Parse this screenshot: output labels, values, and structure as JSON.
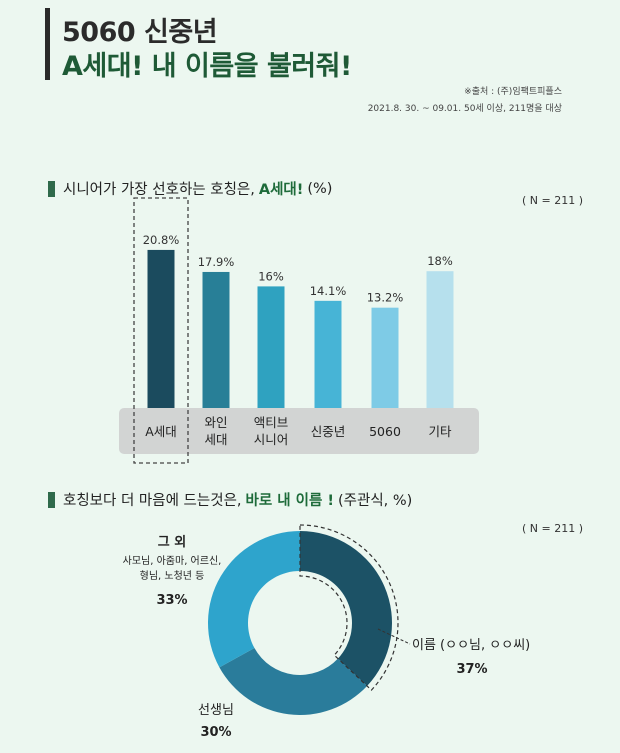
{
  "header": {
    "title_line1": "5060 신중년",
    "title_line2": "A세대! 내 이름을 불러줘!",
    "source_line1": "※출처 :  (주)임팩트피플스",
    "source_line2": "2021.8. 30. ~  09.01. 50세 이상, 211명을 대상"
  },
  "section1": {
    "title_pre": "시니어가 가장 선호하는 호칭은,",
    "title_highlight": "A세대!",
    "title_post": "(%)",
    "n_label": "( N = 211 )"
  },
  "section2": {
    "title_pre": "호칭보다 더 마음에 드는것은,",
    "title_highlight": "바로 내 이름 !",
    "title_post": "(주관식, %)",
    "n_label": "( N = 211 )"
  },
  "colors": {
    "background": "#ecf7f0",
    "accent_green": "#1e6b3a",
    "bar_colors": [
      "#1b4b5e",
      "#287f97",
      "#2fa2c0",
      "#47b4d6",
      "#7ecbe6",
      "#b6e0ed"
    ],
    "donut_colors": [
      "#1c5266",
      "#2a7c9b",
      "#2ea4cc"
    ]
  },
  "chart_data": [
    {
      "type": "bar",
      "categories": [
        [
          "A세대"
        ],
        [
          "와인",
          "세대"
        ],
        [
          "액티브",
          "시니어"
        ],
        [
          "신중년"
        ],
        [
          "5060"
        ],
        [
          "기타"
        ]
      ],
      "values": [
        20.8,
        17.9,
        16,
        14.1,
        13.2,
        18
      ],
      "value_labels": [
        "20.8%",
        "17.9%",
        "16%",
        "14.1%",
        "13.2%",
        "18%"
      ],
      "highlight_index": 0,
      "ylim": [
        0,
        25
      ],
      "grid": false,
      "legend": "none"
    },
    {
      "type": "pie",
      "variant": "donut",
      "slices": [
        {
          "label": "이름 (ㅇㅇ님, ㅇㅇ씨)",
          "value": 37,
          "value_label": "37%"
        },
        {
          "label": "선생님",
          "value": 30,
          "value_label": "30%"
        },
        {
          "label": "그 외",
          "sublabel_lines": [
            "사모님, 아줌마, 어르신,",
            "형님, 노청년 등"
          ],
          "value": 33,
          "value_label": "33%"
        }
      ],
      "start_angle_deg": 0,
      "highlight_index": 0
    }
  ]
}
